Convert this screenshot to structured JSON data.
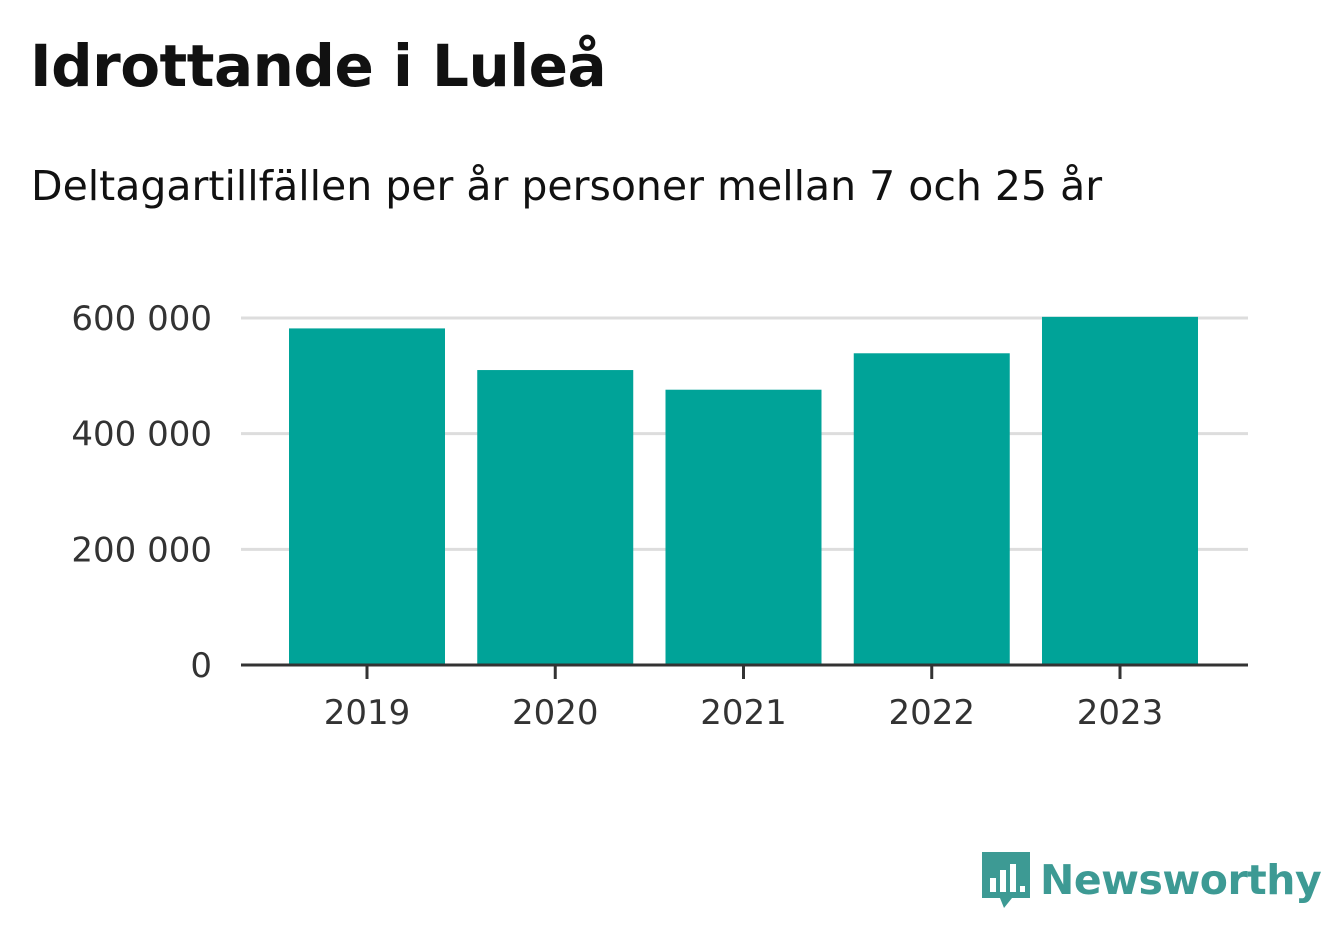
{
  "header": {
    "title": "Idrottande i Luleå",
    "subtitle": "Deltagartillfällen per år personer mellan 7 och 25 år"
  },
  "chart_data": {
    "type": "bar",
    "categories": [
      "2019",
      "2020",
      "2021",
      "2022",
      "2023"
    ],
    "values": [
      582000,
      510000,
      476000,
      539000,
      602000
    ],
    "yticks": [
      0,
      200000,
      400000,
      600000
    ],
    "ytick_labels": [
      "0",
      "200 000",
      "400 000",
      "600 000"
    ],
    "ylim": [
      0,
      600000
    ],
    "grid": true,
    "bar_color": "#00a398"
  },
  "branding": {
    "name": "Newsworthy",
    "color": "#3d9a94",
    "icon": "bar-chart-speech-bubble-icon"
  }
}
